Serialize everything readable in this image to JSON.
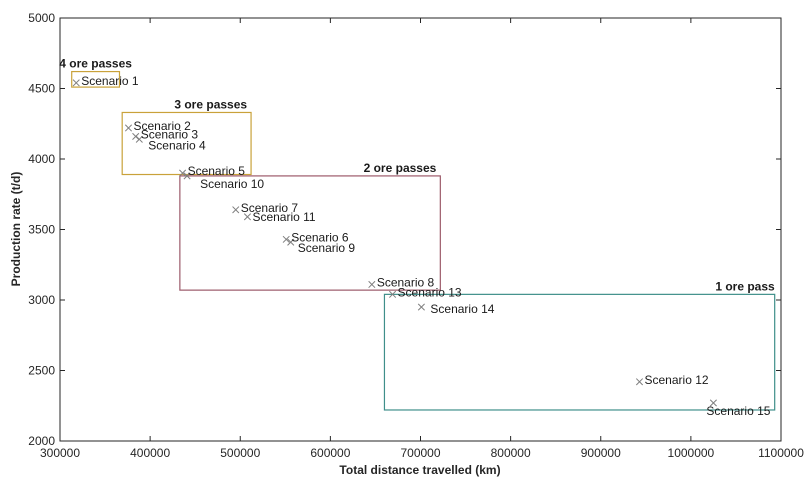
{
  "chart_data": {
    "type": "scatter",
    "title": "",
    "xlabel": "Total distance travelled (km)",
    "ylabel": "Production rate (t/d)",
    "xlim": [
      300000,
      1100000
    ],
    "ylim": [
      2000,
      5000
    ],
    "x_ticks": [
      300000,
      400000,
      500000,
      600000,
      700000,
      800000,
      900000,
      1000000,
      1100000
    ],
    "x_tick_labels": [
      "300000",
      "400000",
      "500000",
      "600000",
      "700000",
      "800000",
      "900000",
      "1000000",
      "1100000"
    ],
    "y_ticks": [
      2000,
      2500,
      3000,
      3500,
      4000,
      4500,
      5000
    ],
    "y_tick_labels": [
      "2000",
      "2500",
      "3000",
      "3500",
      "4000",
      "4500",
      "5000"
    ],
    "grid": false,
    "marker": "x",
    "marker_color": "#7f7f7f",
    "points": [
      {
        "label": "Scenario 1",
        "x": 318000,
        "y": 4540
      },
      {
        "label": "Scenario 2",
        "x": 376000,
        "y": 4220
      },
      {
        "label": "Scenario 3",
        "x": 384000,
        "y": 4160
      },
      {
        "label": "Scenario 4",
        "x": 388000,
        "y": 4140
      },
      {
        "label": "Scenario 5",
        "x": 436000,
        "y": 3900
      },
      {
        "label": "Scenario 10",
        "x": 441000,
        "y": 3880
      },
      {
        "label": "Scenario 7",
        "x": 495000,
        "y": 3640
      },
      {
        "label": "Scenario 11",
        "x": 508000,
        "y": 3590
      },
      {
        "label": "Scenario 6",
        "x": 551000,
        "y": 3430
      },
      {
        "label": "Scenario 9",
        "x": 556000,
        "y": 3410
      },
      {
        "label": "Scenario 8",
        "x": 646000,
        "y": 3110
      },
      {
        "label": "Scenario 13",
        "x": 669000,
        "y": 3040
      },
      {
        "label": "Scenario 14",
        "x": 701000,
        "y": 2950
      },
      {
        "label": "Scenario 12",
        "x": 943000,
        "y": 2420
      },
      {
        "label": "Scenario 15",
        "x": 1025000,
        "y": 2270
      }
    ],
    "groups": [
      {
        "label": "4 ore passes",
        "color": "#c9a23a",
        "x0": 313000,
        "x1": 366000,
        "y0": 4510,
        "y1": 4620
      },
      {
        "label": "3 ore passes",
        "color": "#c9a23a",
        "x0": 369000,
        "x1": 512000,
        "y0": 3890,
        "y1": 4330
      },
      {
        "label": "2 ore passes",
        "color": "#9c5a6a",
        "x0": 433000,
        "x1": 722000,
        "y0": 3070,
        "y1": 3880
      },
      {
        "label": "1 ore pass",
        "color": "#3f8f8a",
        "x0": 660000,
        "x1": 1093000,
        "y0": 2220,
        "y1": 3040
      }
    ]
  }
}
